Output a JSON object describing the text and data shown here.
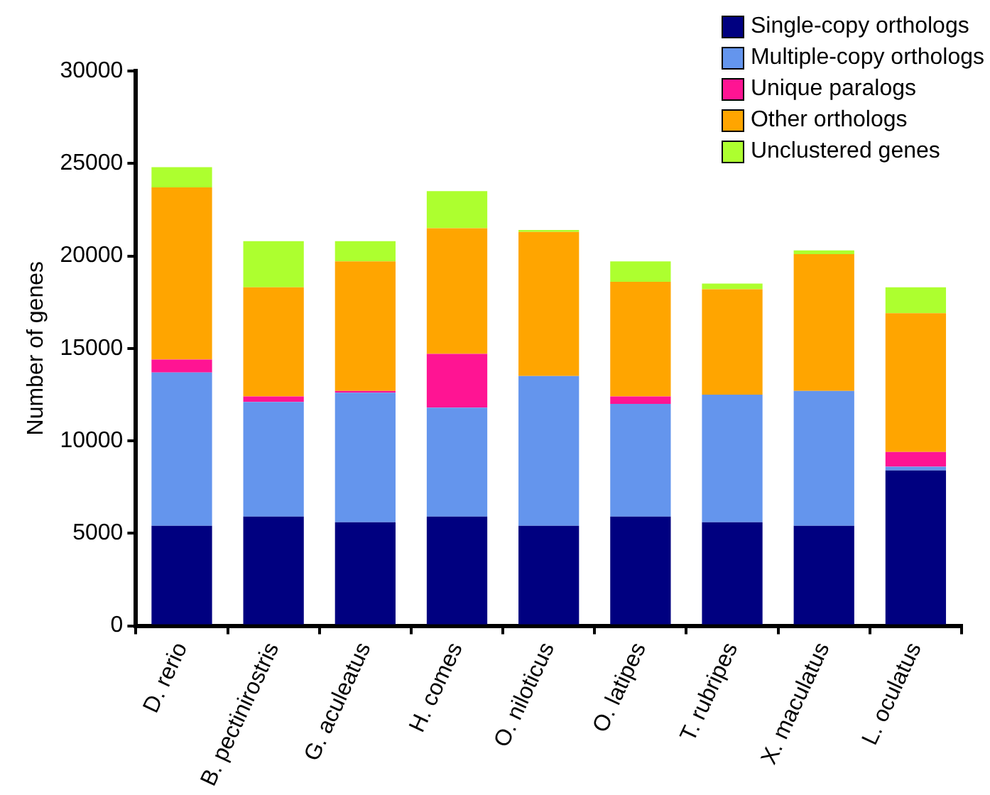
{
  "chart_data": {
    "type": "bar",
    "stacked": true,
    "ylabel": "Number of genes",
    "categories": [
      "D. rerio",
      "B. pectinirostris",
      "G. aculeatus",
      "H. comes",
      "O. niloticus",
      "O. latipes",
      "T. rubripes",
      "X. maculatus",
      "L. oculatus"
    ],
    "series": [
      {
        "name": "Single-copy orthologs",
        "color": "#000080",
        "values": [
          5400,
          5900,
          5600,
          5900,
          5400,
          5900,
          5600,
          5400,
          8400
        ]
      },
      {
        "name": "Multiple-copy orthologs",
        "color": "#6495ed",
        "values": [
          8300,
          6200,
          7000,
          5900,
          8100,
          6100,
          6900,
          7300,
          200
        ]
      },
      {
        "name": "Unique paralogs",
        "color": "#ff1493",
        "values": [
          700,
          300,
          100,
          2900,
          0,
          400,
          0,
          0,
          800
        ]
      },
      {
        "name": "Other orthologs",
        "color": "#ffa500",
        "values": [
          9300,
          5900,
          7000,
          6800,
          7800,
          6200,
          5700,
          7400,
          7500
        ]
      },
      {
        "name": "Unclustered genes",
        "color": "#adff2f",
        "values": [
          1100,
          2500,
          1100,
          2000,
          100,
          1100,
          300,
          200,
          1400
        ]
      }
    ],
    "ylim": [
      0,
      30000
    ],
    "yticks": [
      0,
      5000,
      10000,
      15000,
      20000,
      25000,
      30000
    ],
    "grid": false,
    "legend": "top right"
  }
}
